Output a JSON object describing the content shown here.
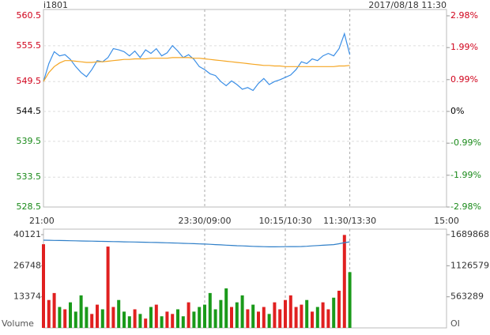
{
  "chart_data": [
    {
      "type": "line",
      "title": "i1801",
      "subtitle": "2017/08/18 11:30",
      "x": [
        0,
        5,
        10,
        15,
        20,
        25,
        30,
        35,
        40,
        45,
        50,
        55,
        60,
        65,
        70,
        75,
        80,
        85,
        90,
        95,
        100,
        105,
        110,
        115,
        120,
        125,
        130,
        135,
        140,
        145,
        150,
        155,
        160,
        165,
        170,
        175,
        180,
        185,
        190,
        195,
        200,
        205,
        210,
        215,
        220,
        225,
        230,
        235,
        240,
        245,
        250,
        255,
        260,
        265,
        270,
        275,
        280,
        285
      ],
      "xlim": [
        0,
        375
      ],
      "xticks": [
        {
          "value": 0,
          "label": "21:00"
        },
        {
          "value": 150,
          "label": "23:30/09:00"
        },
        {
          "value": 225,
          "label": "10:15/10:30"
        },
        {
          "value": 285,
          "label": "11:30/13:30"
        },
        {
          "value": 375,
          "label": "15:00"
        }
      ],
      "ylim": [
        528.5,
        560.5
      ],
      "yticks": [
        560.5,
        555.5,
        549.5,
        544.5,
        539.5,
        533.5,
        528.5
      ],
      "y2lim": [
        -2.98,
        2.98
      ],
      "y2ticks": [
        {
          "value": 2.98,
          "label": "2.98%"
        },
        {
          "value": 1.99,
          "label": "1.99%"
        },
        {
          "value": 0.99,
          "label": "0.99%"
        },
        {
          "value": 0,
          "label": "0%"
        },
        {
          "value": -0.99,
          "label": "-0.99%"
        },
        {
          "value": -1.99,
          "label": "-1.99%"
        },
        {
          "value": -2.98,
          "label": "-2.98%"
        }
      ],
      "tick_colors": {
        "up": "#d0021b",
        "flat": "#000000",
        "down": "#1a8a1a"
      },
      "grid": true,
      "series": [
        {
          "color": "#3a8ee6",
          "values": [
            549.5,
            552.5,
            554.5,
            553.8,
            554.0,
            553.2,
            552.0,
            551.0,
            550.3,
            551.5,
            553.0,
            552.8,
            553.5,
            555.0,
            554.8,
            554.5,
            553.8,
            554.6,
            553.5,
            554.8,
            554.2,
            555.0,
            553.8,
            554.3,
            555.5,
            554.6,
            553.5,
            554.0,
            553.2,
            552.0,
            551.5,
            550.8,
            550.5,
            549.5,
            548.8,
            549.6,
            549.0,
            548.2,
            548.5,
            548.0,
            549.2,
            550.0,
            549.0,
            549.5,
            549.8,
            550.2,
            550.6,
            551.5,
            552.8,
            552.5,
            553.3,
            553.0,
            553.8,
            554.2,
            553.8,
            555.0,
            557.5,
            554.0
          ]
        },
        {
          "color": "#f5a623",
          "values": [
            549.5,
            551.0,
            552.0,
            552.6,
            553.0,
            553.0,
            552.9,
            552.8,
            552.7,
            552.7,
            552.8,
            552.8,
            552.9,
            553.0,
            553.1,
            553.2,
            553.2,
            553.3,
            553.3,
            553.3,
            553.4,
            553.4,
            553.4,
            553.4,
            553.5,
            553.5,
            553.5,
            553.5,
            553.4,
            553.4,
            553.3,
            553.2,
            553.1,
            553.0,
            552.9,
            552.8,
            552.7,
            552.6,
            552.5,
            552.4,
            552.3,
            552.2,
            552.2,
            552.1,
            552.1,
            552.0,
            552.0,
            552.0,
            552.0,
            552.0,
            552.0,
            552.0,
            552.0,
            552.0,
            552.0,
            552.1,
            552.1,
            552.2
          ]
        }
      ]
    },
    {
      "type": "bar",
      "volume_label": "Volume",
      "oi_label": "OI",
      "values": [
        36000,
        12000,
        15000,
        9000,
        8000,
        11000,
        7000,
        14000,
        9000,
        6000,
        10000,
        8000,
        35000,
        9000,
        12000,
        7000,
        5000,
        8000,
        6000,
        4000,
        9000,
        10000,
        5000,
        7000,
        6000,
        8000,
        5000,
        11000,
        7000,
        9000,
        10000,
        15000,
        8000,
        12000,
        17000,
        9000,
        11000,
        14000,
        8000,
        10000,
        7000,
        9000,
        6000,
        11000,
        8000,
        12000,
        14000,
        9000,
        10000,
        12000,
        7000,
        9000,
        11000,
        8000,
        13000,
        16000,
        40000,
        24000
      ],
      "colors": {
        "up": "#e02020",
        "down": "#1a9a1a"
      },
      "ylim": [
        0,
        40121
      ],
      "yticks": [
        40121,
        26748,
        13374
      ],
      "y2lim": [
        0,
        1689868
      ],
      "y2ticks": [
        1689868,
        1126579,
        563289
      ],
      "oi": {
        "color": "#2f7fc8",
        "values": [
          1590000,
          1588000,
          1586000,
          1584000,
          1582000,
          1580000,
          1578000,
          1576000,
          1574000,
          1572000,
          1570000,
          1568000,
          1566000,
          1564000,
          1562000,
          1560000,
          1558000,
          1556000,
          1554000,
          1552000,
          1550000,
          1548000,
          1545000,
          1542000,
          1539000,
          1536000,
          1533000,
          1530000,
          1526000,
          1523000,
          1520000,
          1515000,
          1510000,
          1505000,
          1500000,
          1495000,
          1490000,
          1486000,
          1482000,
          1478000,
          1475000,
          1472000,
          1470000,
          1470000,
          1471000,
          1472000,
          1473000,
          1474000,
          1475000,
          1480000,
          1486000,
          1492000,
          1498000,
          1504000,
          1510000,
          1525000,
          1545000,
          1560000
        ]
      }
    }
  ]
}
